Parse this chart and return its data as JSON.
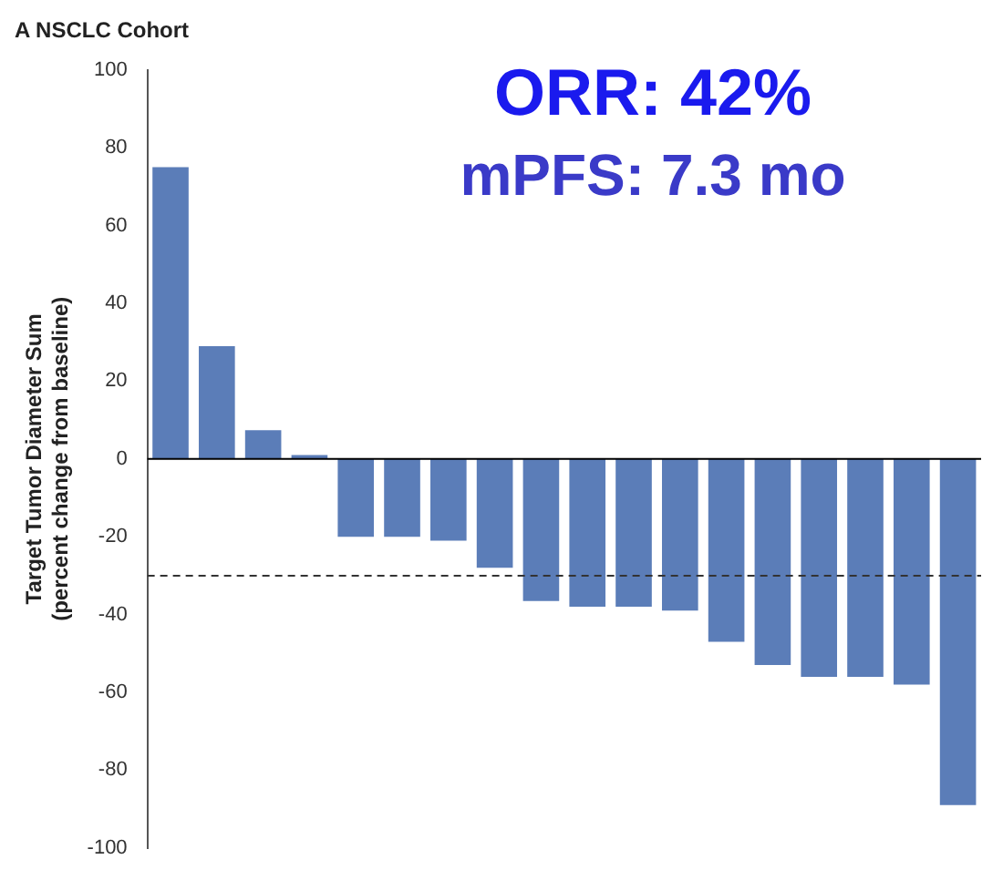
{
  "chart_data": {
    "type": "bar",
    "title": "A NSCLC Cohort",
    "ylabel": "Target Tumor Diameter Sum\n(percent change from baseline)",
    "categories": [
      null,
      null,
      null,
      null,
      null,
      null,
      null,
      null,
      null,
      null,
      null,
      null,
      null,
      null,
      null,
      null,
      null,
      null
    ],
    "values": [
      75,
      29,
      7.4,
      1,
      -20,
      -20,
      -21,
      -28,
      -36.5,
      -38,
      -38,
      -39,
      -47,
      -53,
      -56,
      -56,
      -58,
      -89
    ],
    "color": "#5b7db8",
    "ylim": [
      -100,
      100
    ],
    "yticks": [
      -100,
      -80,
      -60,
      -40,
      -20,
      0,
      20,
      40,
      60,
      80,
      100
    ],
    "ref_lines": [
      {
        "axis": "y",
        "value": 0,
        "line_style": "solid",
        "color": "#000000"
      },
      {
        "axis": "y",
        "value": -30,
        "line_style": "dashed",
        "color": "#333333"
      }
    ],
    "annotations": [
      "ORR: 42%",
      "mPFS: 7.3 mo"
    ],
    "grid": false,
    "legend": false
  }
}
